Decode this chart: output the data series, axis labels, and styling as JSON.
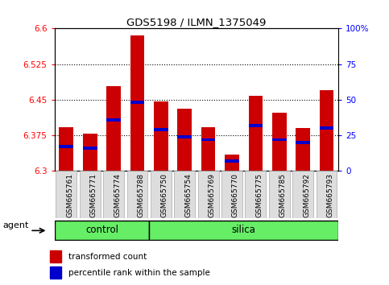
{
  "title": "GDS5198 / ILMN_1375049",
  "samples": [
    "GSM665761",
    "GSM665771",
    "GSM665774",
    "GSM665788",
    "GSM665750",
    "GSM665754",
    "GSM665769",
    "GSM665770",
    "GSM665775",
    "GSM665785",
    "GSM665792",
    "GSM665793"
  ],
  "groups": [
    "control",
    "control",
    "control",
    "control",
    "silica",
    "silica",
    "silica",
    "silica",
    "silica",
    "silica",
    "silica",
    "silica"
  ],
  "transformed_count": [
    6.393,
    6.378,
    6.478,
    6.585,
    6.447,
    6.432,
    6.392,
    6.335,
    6.458,
    6.422,
    6.39,
    6.47
  ],
  "percentile_rank": [
    17,
    16,
    36,
    48,
    29,
    24,
    22,
    7,
    32,
    22,
    20,
    30
  ],
  "yticks_left": [
    6.3,
    6.375,
    6.45,
    6.525,
    6.6
  ],
  "yticks_right": [
    0,
    25,
    50,
    75,
    100
  ],
  "yticklabels_right": [
    "0",
    "25",
    "50",
    "75",
    "100%"
  ],
  "bar_color": "#cc0000",
  "marker_color": "#0000cc",
  "bar_width": 0.6,
  "group_color": "#66ee66",
  "agent_label": "agent",
  "group_label_control": "control",
  "group_label_silica": "silica",
  "legend_transformed": "transformed count",
  "legend_percentile": "percentile rank within the sample",
  "ymin": 6.3,
  "ymax": 6.6,
  "percentile_scale_min": 0,
  "percentile_scale_max": 100,
  "n_control": 4,
  "n_silica": 8
}
